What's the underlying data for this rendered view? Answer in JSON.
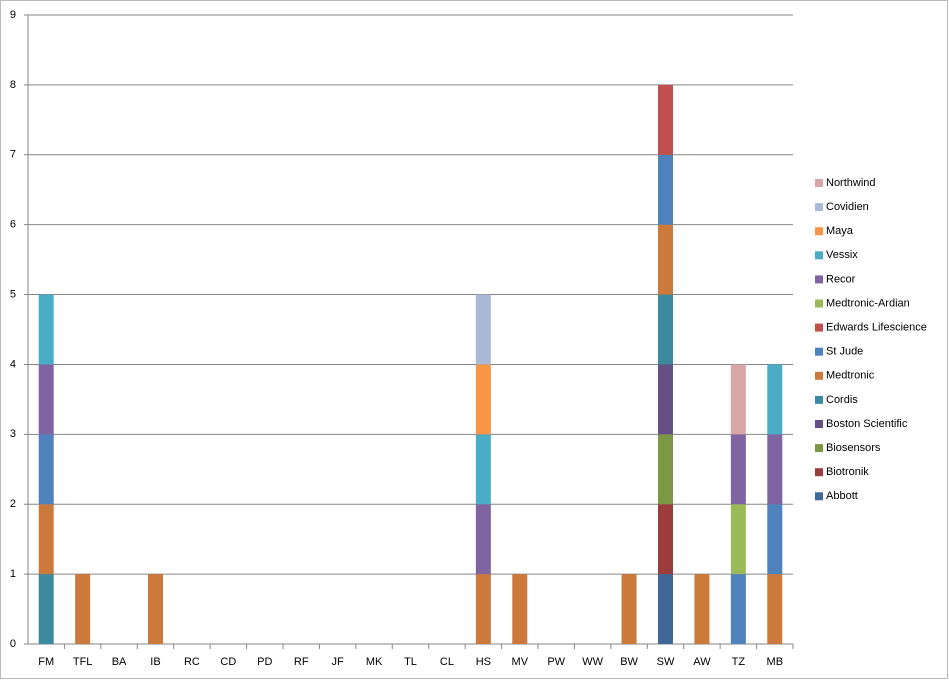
{
  "chart_data": {
    "type": "stacked_bar",
    "categories": [
      "FM",
      "TFL",
      "BA",
      "IB",
      "RC",
      "CD",
      "PD",
      "RF",
      "JF",
      "MK",
      "TL",
      "CL",
      "HS",
      "MV",
      "PW",
      "WW",
      "BW",
      "SW",
      "AW",
      "TZ",
      "MB"
    ],
    "series": [
      {
        "name": "Abbott",
        "color": "#3f6797",
        "values": [
          0,
          0,
          0,
          0,
          0,
          0,
          0,
          0,
          0,
          0,
          0,
          0,
          0,
          0,
          0,
          0,
          0,
          1,
          0,
          0,
          0
        ]
      },
      {
        "name": "Biotronik",
        "color": "#9b3d3a",
        "values": [
          0,
          0,
          0,
          0,
          0,
          0,
          0,
          0,
          0,
          0,
          0,
          0,
          0,
          0,
          0,
          0,
          0,
          1,
          0,
          0,
          0
        ]
      },
      {
        "name": "Biosensors",
        "color": "#7d9845",
        "values": [
          0,
          0,
          0,
          0,
          0,
          0,
          0,
          0,
          0,
          0,
          0,
          0,
          0,
          0,
          0,
          0,
          0,
          1,
          0,
          0,
          0
        ]
      },
      {
        "name": "Boston Scientific",
        "color": "#664f82",
        "values": [
          0,
          0,
          0,
          0,
          0,
          0,
          0,
          0,
          0,
          0,
          0,
          0,
          0,
          0,
          0,
          0,
          0,
          1,
          0,
          0,
          0
        ]
      },
      {
        "name": "Cordis",
        "color": "#3b8a9e",
        "values": [
          1,
          0,
          0,
          0,
          0,
          0,
          0,
          0,
          0,
          0,
          0,
          0,
          0,
          0,
          0,
          0,
          0,
          1,
          0,
          0,
          0
        ]
      },
      {
        "name": "Medtronic",
        "color": "#cc7a3c",
        "values": [
          1,
          1,
          0,
          1,
          0,
          0,
          0,
          0,
          0,
          0,
          0,
          0,
          1,
          1,
          0,
          0,
          1,
          1,
          1,
          0,
          1
        ]
      },
      {
        "name": "St Jude",
        "color": "#4f81bd",
        "values": [
          1,
          0,
          0,
          0,
          0,
          0,
          0,
          0,
          0,
          0,
          0,
          0,
          0,
          0,
          0,
          0,
          0,
          1,
          0,
          1,
          1
        ]
      },
      {
        "name": "Edwards Lifescience",
        "color": "#c0504d",
        "values": [
          0,
          0,
          0,
          0,
          0,
          0,
          0,
          0,
          0,
          0,
          0,
          0,
          0,
          0,
          0,
          0,
          0,
          1,
          0,
          0,
          0
        ]
      },
      {
        "name": "Medtronic-Ardian",
        "color": "#9bbb59",
        "values": [
          0,
          0,
          0,
          0,
          0,
          0,
          0,
          0,
          0,
          0,
          0,
          0,
          0,
          0,
          0,
          0,
          0,
          0,
          0,
          1,
          0
        ]
      },
      {
        "name": "Recor",
        "color": "#8064a2",
        "values": [
          1,
          0,
          0,
          0,
          0,
          0,
          0,
          0,
          0,
          0,
          0,
          0,
          1,
          0,
          0,
          0,
          0,
          0,
          0,
          1,
          1
        ]
      },
      {
        "name": "Vessix",
        "color": "#4bacc6",
        "values": [
          1,
          0,
          0,
          0,
          0,
          0,
          0,
          0,
          0,
          0,
          0,
          0,
          1,
          0,
          0,
          0,
          0,
          0,
          0,
          0,
          1
        ]
      },
      {
        "name": "Maya",
        "color": "#f79646",
        "values": [
          0,
          0,
          0,
          0,
          0,
          0,
          0,
          0,
          0,
          0,
          0,
          0,
          1,
          0,
          0,
          0,
          0,
          0,
          0,
          0,
          0
        ]
      },
      {
        "name": "Covidien",
        "color": "#a9b9d6",
        "values": [
          0,
          0,
          0,
          0,
          0,
          0,
          0,
          0,
          0,
          0,
          0,
          0,
          1,
          0,
          0,
          0,
          0,
          0,
          0,
          0,
          0
        ]
      },
      {
        "name": "Northwind",
        "color": "#d9a6a6",
        "values": [
          0,
          0,
          0,
          0,
          0,
          0,
          0,
          0,
          0,
          0,
          0,
          0,
          0,
          0,
          0,
          0,
          0,
          0,
          0,
          1,
          0
        ]
      }
    ],
    "ylim": [
      0,
      9
    ],
    "yticks": [
      0,
      1,
      2,
      3,
      4,
      5,
      6,
      7,
      8,
      9
    ],
    "grid": true,
    "legend": "right"
  }
}
